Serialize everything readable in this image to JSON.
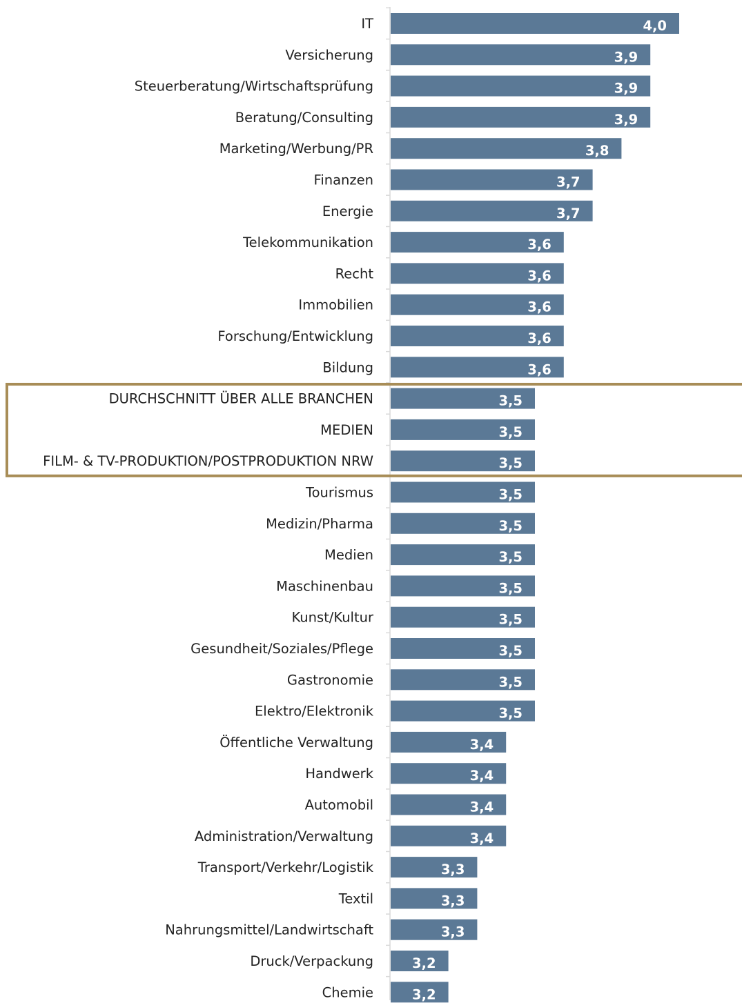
{
  "chart_data": {
    "type": "bar",
    "orientation": "horizontal",
    "title": "",
    "xlabel": "",
    "ylabel": "",
    "grid": false,
    "bar_color": "#5b7996",
    "highlight_color": "#a88d57",
    "categories": [
      "IT",
      "Versicherung",
      "Steuerberatung/Wirtschaftsprüfung",
      "Beratung/Consulting",
      "Marketing/Werbung/PR",
      "Finanzen",
      "Energie",
      "Telekommunikation",
      "Recht",
      "Immobilien",
      "Forschung/Entwicklung",
      "Bildung",
      "DURCHSCHNITT ÜBER ALLE BRANCHEN",
      "MEDIEN",
      "FILM- & TV-PRODUKTION/POSTPRODUKTION NRW",
      "Tourismus",
      "Medizin/Pharma",
      "Medien",
      "Maschinenbau",
      "Kunst/Kultur",
      "Gesundheit/Soziales/Pflege",
      "Gastronomie",
      "Elektro/Elektronik",
      "Öffentliche Verwaltung",
      "Handwerk",
      "Automobil",
      "Administration/Verwaltung",
      "Transport/Verkehr/Logistik",
      "Textil",
      "Nahrungsmittel/Landwirtschaft",
      "Druck/Verpackung",
      "Chemie"
    ],
    "values": [
      4.0,
      3.9,
      3.9,
      3.9,
      3.8,
      3.7,
      3.7,
      3.6,
      3.6,
      3.6,
      3.6,
      3.6,
      3.5,
      3.5,
      3.5,
      3.5,
      3.5,
      3.5,
      3.5,
      3.5,
      3.5,
      3.5,
      3.5,
      3.4,
      3.4,
      3.4,
      3.4,
      3.3,
      3.3,
      3.3,
      3.2,
      3.2
    ],
    "value_labels": [
      "4,0",
      "3,9",
      "3,9",
      "3,9",
      "3,8",
      "3,7",
      "3,7",
      "3,6",
      "3,6",
      "3,6",
      "3,6",
      "3,6",
      "3,5",
      "3,5",
      "3,5",
      "3,5",
      "3,5",
      "3,5",
      "3,5",
      "3,5",
      "3,5",
      "3,5",
      "3,5",
      "3,4",
      "3,4",
      "3,4",
      "3,4",
      "3,3",
      "3,3",
      "3,3",
      "3,2",
      "3,2"
    ],
    "highlighted_categories": [
      "DURCHSCHNITT ÜBER ALLE BRANCHEN",
      "MEDIEN",
      "FILM- & TV-PRODUKTION/POSTPRODUKTION NRW"
    ],
    "xlim": [
      3.0,
      4.0
    ]
  }
}
